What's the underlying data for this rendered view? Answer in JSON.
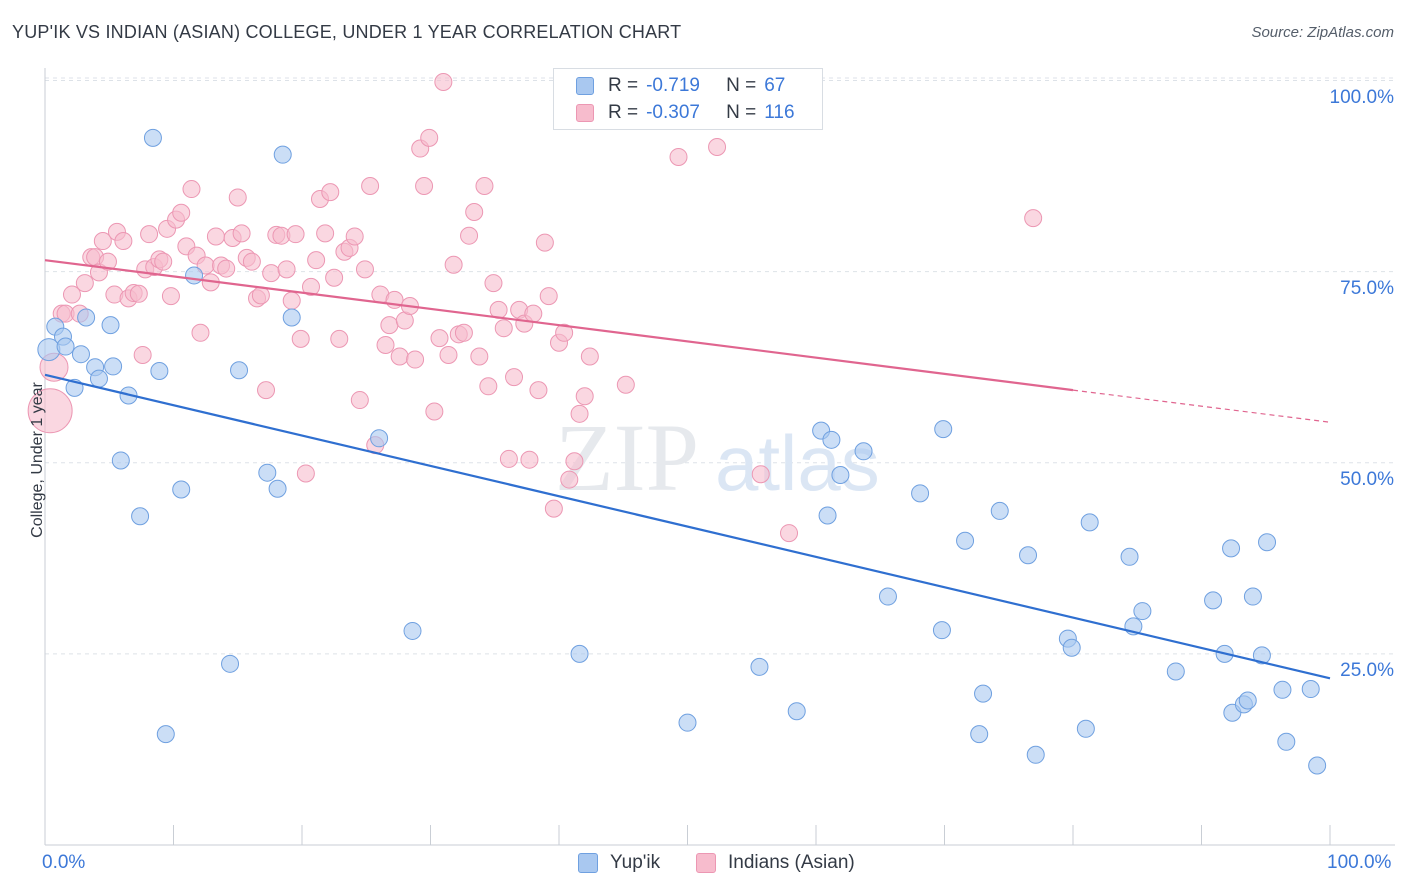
{
  "title": "YUP'IK VS INDIAN (ASIAN) COLLEGE, UNDER 1 YEAR CORRELATION CHART",
  "source": "Source: ZipAtlas.com",
  "watermark": {
    "zip": "ZIP",
    "atlas": "atlas"
  },
  "legend": {
    "r_label": "R =",
    "n_label": "N =",
    "series": [
      {
        "r": "-0.719",
        "n": "67"
      },
      {
        "r": "-0.307",
        "n": "116"
      }
    ]
  },
  "bottom_legend": [
    "Yup'ik",
    "Indians (Asian)"
  ],
  "colors": {
    "blue_fill": "#a9c8f0",
    "blue_stroke": "#6fa0e0",
    "blue_line": "#2f6fd0",
    "pink_fill": "#f7bccd",
    "pink_stroke": "#ec97b3",
    "pink_line": "#e0658f",
    "tick_text": "#3c78d8",
    "grid": "#dde2e8"
  },
  "chart_data": {
    "type": "scatter",
    "title": "YUP'IK VS INDIAN (ASIAN) COLLEGE, UNDER 1 YEAR CORRELATION CHART",
    "xlabel": "",
    "ylabel": "College, Under 1 year",
    "xlim": [
      0,
      100
    ],
    "ylim": [
      0,
      105
    ],
    "x_tick_labels": [
      "0.0%",
      "100.0%"
    ],
    "y_ticks": [
      25,
      50,
      75,
      100
    ],
    "y_tick_labels": [
      "25.0%",
      "50.0%",
      "75.0%",
      "100.0%"
    ],
    "series": [
      {
        "name": "Yup'ik",
        "r": -0.719,
        "n": 67,
        "trend": {
          "x": [
            0,
            100
          ],
          "y": [
            61.5,
            21.8
          ]
        },
        "points": [
          [
            0.3,
            64.8
          ],
          [
            0.8,
            67.8
          ],
          [
            1.4,
            66.5
          ],
          [
            1.6,
            65.2
          ],
          [
            2.3,
            59.8
          ],
          [
            2.8,
            64.2
          ],
          [
            3.2,
            69.0
          ],
          [
            3.9,
            62.5
          ],
          [
            4.2,
            61.0
          ],
          [
            5.1,
            68.0
          ],
          [
            5.3,
            62.6
          ],
          [
            5.9,
            50.3
          ],
          [
            6.5,
            58.8
          ],
          [
            7.4,
            43.0
          ],
          [
            8.4,
            92.5
          ],
          [
            8.9,
            62.0
          ],
          [
            9.4,
            14.5
          ],
          [
            10.6,
            46.5
          ],
          [
            11.6,
            74.5
          ],
          [
            14.4,
            23.7
          ],
          [
            15.1,
            62.1
          ],
          [
            17.3,
            48.7
          ],
          [
            18.1,
            46.6
          ],
          [
            18.5,
            90.3
          ],
          [
            19.2,
            69.0
          ],
          [
            26.0,
            53.2
          ],
          [
            28.6,
            28.0
          ],
          [
            41.6,
            25.0
          ],
          [
            50.0,
            16.0
          ],
          [
            55.6,
            23.3
          ],
          [
            58.5,
            17.5
          ],
          [
            60.4,
            54.2
          ],
          [
            60.9,
            43.1
          ],
          [
            61.2,
            53.0
          ],
          [
            61.9,
            48.4
          ],
          [
            63.7,
            51.5
          ],
          [
            65.6,
            32.5
          ],
          [
            68.1,
            46.0
          ],
          [
            69.8,
            28.1
          ],
          [
            69.9,
            54.4
          ],
          [
            71.6,
            39.8
          ],
          [
            72.7,
            14.5
          ],
          [
            73.0,
            19.8
          ],
          [
            74.3,
            43.7
          ],
          [
            76.5,
            37.9
          ],
          [
            77.1,
            11.8
          ],
          [
            79.6,
            27.0
          ],
          [
            79.9,
            25.8
          ],
          [
            81.0,
            15.2
          ],
          [
            81.3,
            42.2
          ],
          [
            84.4,
            37.7
          ],
          [
            84.7,
            28.6
          ],
          [
            85.4,
            30.6
          ],
          [
            88.0,
            22.7
          ],
          [
            90.9,
            32.0
          ],
          [
            91.8,
            25.0
          ],
          [
            92.3,
            38.8
          ],
          [
            92.4,
            17.3
          ],
          [
            93.3,
            18.4
          ],
          [
            93.6,
            18.9
          ],
          [
            94.0,
            32.5
          ],
          [
            94.7,
            24.8
          ],
          [
            95.1,
            39.6
          ],
          [
            96.3,
            20.3
          ],
          [
            96.6,
            13.5
          ],
          [
            98.5,
            20.4
          ],
          [
            99.0,
            10.4
          ]
        ]
      },
      {
        "name": "Indians (Asian)",
        "r": -0.307,
        "n": 116,
        "trend": {
          "x": [
            0,
            80
          ],
          "y": [
            76.5,
            59.5
          ]
        },
        "trend_dashed": {
          "x": [
            80,
            100
          ],
          "y": [
            59.5,
            55.3
          ]
        },
        "points": [
          [
            0.4,
            56.8
          ],
          [
            0.7,
            62.5
          ],
          [
            1.3,
            69.5
          ],
          [
            1.6,
            69.5
          ],
          [
            2.1,
            72.0
          ],
          [
            2.7,
            69.5
          ],
          [
            3.1,
            73.5
          ],
          [
            3.6,
            76.9
          ],
          [
            3.9,
            76.9
          ],
          [
            4.2,
            74.9
          ],
          [
            4.5,
            79.0
          ],
          [
            4.9,
            76.3
          ],
          [
            5.4,
            72.0
          ],
          [
            5.6,
            80.2
          ],
          [
            6.1,
            79.0
          ],
          [
            6.5,
            71.5
          ],
          [
            6.9,
            72.2
          ],
          [
            7.3,
            72.1
          ],
          [
            7.6,
            64.1
          ],
          [
            7.8,
            75.3
          ],
          [
            8.1,
            79.9
          ],
          [
            8.5,
            75.6
          ],
          [
            8.9,
            76.6
          ],
          [
            9.2,
            76.3
          ],
          [
            9.5,
            80.6
          ],
          [
            9.8,
            71.8
          ],
          [
            10.2,
            81.8
          ],
          [
            10.6,
            82.7
          ],
          [
            11.0,
            78.3
          ],
          [
            11.4,
            85.8
          ],
          [
            11.8,
            77.1
          ],
          [
            12.1,
            67.0
          ],
          [
            12.5,
            75.8
          ],
          [
            12.9,
            73.6
          ],
          [
            13.3,
            79.6
          ],
          [
            13.7,
            75.8
          ],
          [
            14.1,
            75.4
          ],
          [
            14.6,
            79.4
          ],
          [
            15.0,
            84.7
          ],
          [
            15.3,
            80.0
          ],
          [
            15.7,
            76.8
          ],
          [
            16.1,
            76.3
          ],
          [
            16.5,
            71.5
          ],
          [
            16.8,
            71.9
          ],
          [
            17.2,
            59.5
          ],
          [
            17.6,
            74.8
          ],
          [
            18.0,
            79.8
          ],
          [
            18.4,
            79.7
          ],
          [
            18.8,
            75.3
          ],
          [
            19.2,
            71.2
          ],
          [
            19.5,
            79.9
          ],
          [
            19.9,
            66.2
          ],
          [
            20.3,
            48.6
          ],
          [
            20.7,
            73.0
          ],
          [
            21.1,
            76.5
          ],
          [
            21.4,
            84.5
          ],
          [
            21.8,
            80.0
          ],
          [
            22.2,
            85.4
          ],
          [
            22.5,
            74.2
          ],
          [
            22.9,
            66.2
          ],
          [
            23.3,
            77.6
          ],
          [
            23.7,
            78.1
          ],
          [
            24.1,
            79.6
          ],
          [
            24.5,
            58.2
          ],
          [
            24.9,
            75.3
          ],
          [
            25.3,
            86.2
          ],
          [
            25.7,
            52.3
          ],
          [
            26.1,
            72.0
          ],
          [
            26.5,
            65.4
          ],
          [
            26.8,
            68.0
          ],
          [
            27.2,
            71.3
          ],
          [
            27.6,
            63.9
          ],
          [
            28.0,
            68.6
          ],
          [
            28.4,
            70.5
          ],
          [
            28.8,
            63.5
          ],
          [
            29.2,
            91.1
          ],
          [
            29.5,
            86.2
          ],
          [
            29.9,
            92.5
          ],
          [
            30.3,
            56.7
          ],
          [
            30.7,
            66.3
          ],
          [
            31.0,
            99.8
          ],
          [
            31.4,
            64.1
          ],
          [
            31.8,
            75.9
          ],
          [
            32.2,
            66.8
          ],
          [
            32.6,
            67.0
          ],
          [
            33.0,
            79.7
          ],
          [
            33.4,
            82.8
          ],
          [
            33.8,
            63.9
          ],
          [
            34.2,
            86.2
          ],
          [
            34.5,
            60.0
          ],
          [
            34.9,
            73.5
          ],
          [
            35.3,
            70.0
          ],
          [
            35.7,
            67.6
          ],
          [
            36.1,
            50.5
          ],
          [
            36.5,
            61.2
          ],
          [
            36.9,
            70.0
          ],
          [
            37.3,
            68.2
          ],
          [
            37.7,
            50.4
          ],
          [
            38.0,
            69.5
          ],
          [
            38.4,
            59.5
          ],
          [
            38.9,
            78.8
          ],
          [
            39.2,
            71.8
          ],
          [
            39.6,
            44.0
          ],
          [
            40.0,
            65.7
          ],
          [
            40.4,
            67.0
          ],
          [
            40.8,
            47.8
          ],
          [
            41.2,
            50.2
          ],
          [
            41.6,
            56.4
          ],
          [
            42.0,
            58.7
          ],
          [
            42.4,
            63.9
          ],
          [
            45.2,
            60.2
          ],
          [
            49.3,
            90.0
          ],
          [
            52.3,
            91.3
          ],
          [
            55.7,
            48.5
          ],
          [
            57.9,
            40.8
          ],
          [
            76.9,
            82.0
          ]
        ]
      }
    ]
  }
}
